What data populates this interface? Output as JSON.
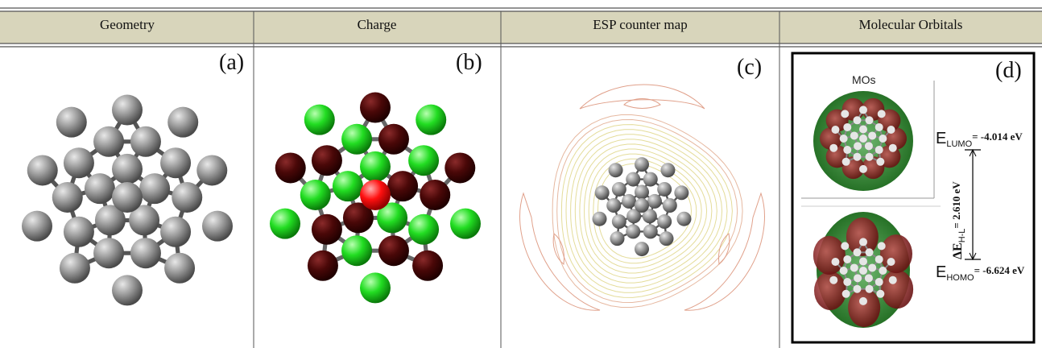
{
  "header": {
    "columns": [
      "Geometry",
      "Charge",
      "ESP counter map",
      "Molecular Orbitals"
    ]
  },
  "panels": [
    {
      "label": "(a)"
    },
    {
      "label": "(b)"
    },
    {
      "label": "(c)"
    },
    {
      "label": "(d)",
      "title": "MOs",
      "lumo": {
        "symbol": "E",
        "subscript": "LUMO",
        "text": "= -4.014 eV"
      },
      "gap": {
        "symbol": "ΔE",
        "subscript": "H-L",
        "text": "= 2.610 eV"
      },
      "homo": {
        "symbol": "E",
        "subscript": "HOMO",
        "text": "= -6.624 eV"
      }
    }
  ]
}
